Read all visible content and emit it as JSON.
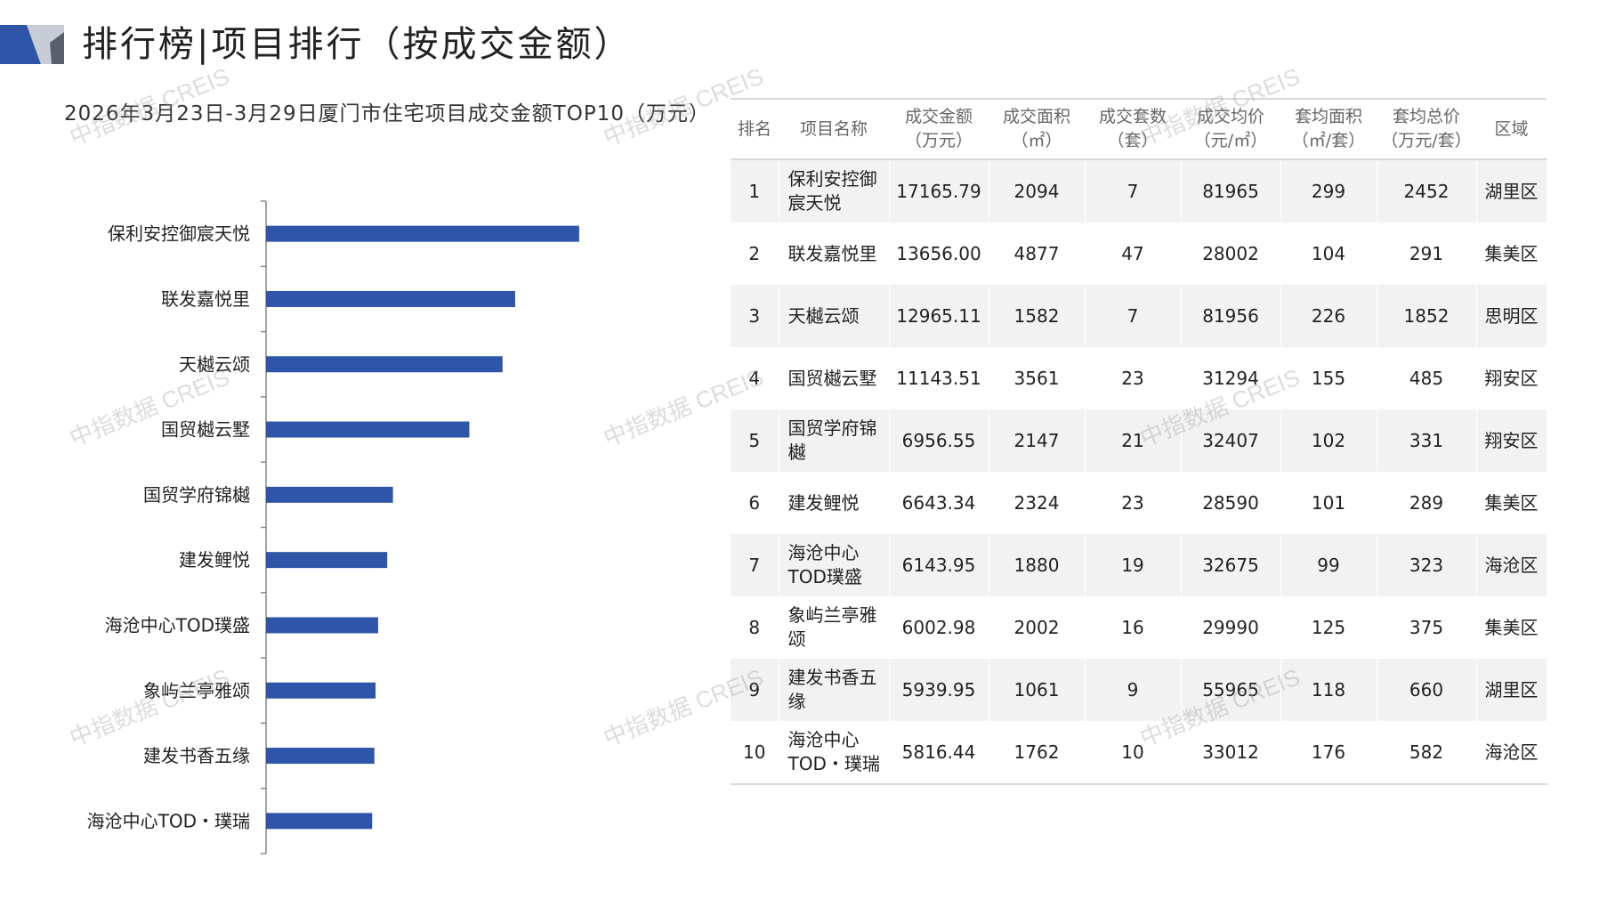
{
  "header": {
    "title": "排行榜|项目排行（按成交金额）"
  },
  "colors": {
    "bar": "#2e55a8",
    "accent_dark": "#2e55a8",
    "accent_light": "#c7ccd6"
  },
  "watermark_text": "中指数据 CREIS",
  "chart_data": {
    "type": "bar",
    "orientation": "horizontal",
    "title": "2026年3月23日-3月29日厦门市住宅项目成交金额TOP10（万元）",
    "categories": [
      "保利安控御宸天悦",
      "联发嘉悦里",
      "天樾云颂",
      "国贸樾云墅",
      "国贸学府锦樾",
      "建发鲤悦",
      "海沧中心TOD璞盛",
      "象屿兰亭雅颂",
      "建发书香五缘",
      "海沧中心TOD・璞瑞"
    ],
    "values": [
      17165.79,
      13656.0,
      12965.11,
      11143.51,
      6956.55,
      6643.34,
      6143.95,
      6002.98,
      5939.95,
      5816.44
    ],
    "xlim": [
      0,
      20000
    ],
    "grid": false,
    "legend": "none"
  },
  "table": {
    "headers": [
      "排名",
      "项目名称",
      "成交金额\n（万元）",
      "成交面积\n（㎡）",
      "成交套数\n（套）",
      "成交均价\n（元/㎡）",
      "套均面积\n（㎡/套）",
      "套均总价\n（万元/套）",
      "区域"
    ],
    "rows": [
      [
        "1",
        "保利安控御宸天悦",
        "17165.79",
        "2094",
        "7",
        "81965",
        "299",
        "2452",
        "湖里区"
      ],
      [
        "2",
        "联发嘉悦里",
        "13656.00",
        "4877",
        "47",
        "28002",
        "104",
        "291",
        "集美区"
      ],
      [
        "3",
        "天樾云颂",
        "12965.11",
        "1582",
        "7",
        "81956",
        "226",
        "1852",
        "思明区"
      ],
      [
        "4",
        "国贸樾云墅",
        "11143.51",
        "3561",
        "23",
        "31294",
        "155",
        "485",
        "翔安区"
      ],
      [
        "5",
        "国贸学府锦樾",
        "6956.55",
        "2147",
        "21",
        "32407",
        "102",
        "331",
        "翔安区"
      ],
      [
        "6",
        "建发鲤悦",
        "6643.34",
        "2324",
        "23",
        "28590",
        "101",
        "289",
        "集美区"
      ],
      [
        "7",
        "海沧中心TOD璞盛",
        "6143.95",
        "1880",
        "19",
        "32675",
        "99",
        "323",
        "海沧区"
      ],
      [
        "8",
        "象屿兰亭雅颂",
        "6002.98",
        "2002",
        "16",
        "29990",
        "125",
        "375",
        "集美区"
      ],
      [
        "9",
        "建发书香五缘",
        "5939.95",
        "1061",
        "9",
        "55965",
        "118",
        "660",
        "湖里区"
      ],
      [
        "10",
        "海沧中心TOD・璞瑞",
        "5816.44",
        "1762",
        "10",
        "33012",
        "176",
        "582",
        "海沧区"
      ]
    ]
  }
}
